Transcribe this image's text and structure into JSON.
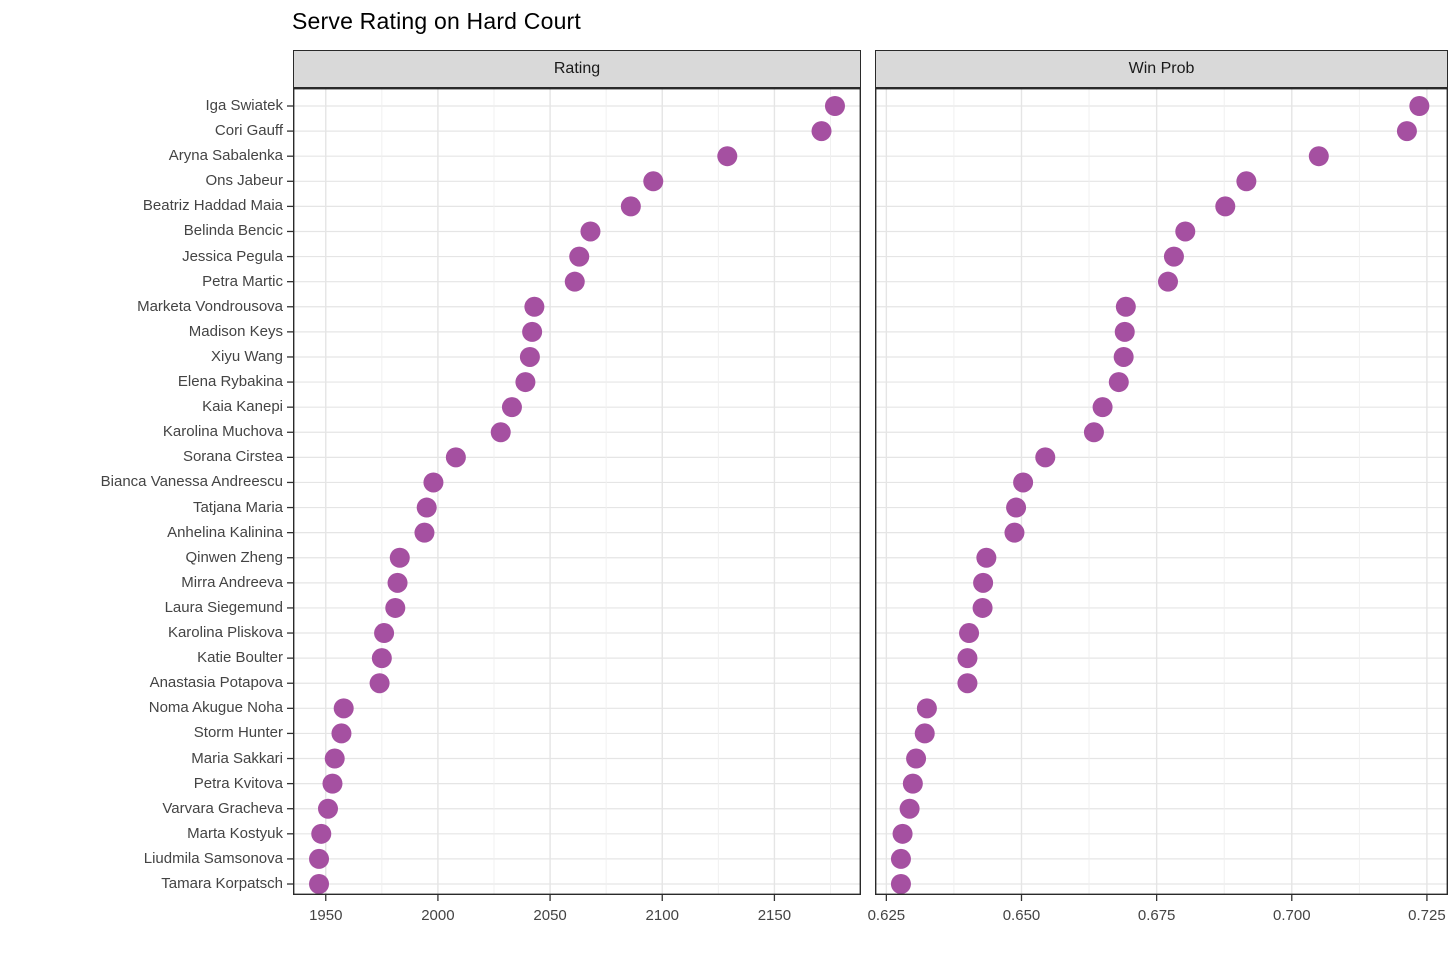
{
  "title": "Serve Rating on Hard Court",
  "chart_data": {
    "type": "scatter",
    "title": "Serve Rating on Hard Court",
    "orientation": "horizontal-dotplot",
    "grid": true,
    "legend": "none",
    "players": [
      "Iga Swiatek",
      "Cori Gauff",
      "Aryna Sabalenka",
      "Ons Jabeur",
      "Beatriz Haddad Maia",
      "Belinda Bencic",
      "Jessica Pegula",
      "Petra Martic",
      "Marketa Vondrousova",
      "Madison Keys",
      "Xiyu Wang",
      "Elena Rybakina",
      "Kaia Kanepi",
      "Karolina Muchova",
      "Sorana Cirstea",
      "Bianca Vanessa Andreescu",
      "Tatjana Maria",
      "Anhelina Kalinina",
      "Qinwen Zheng",
      "Mirra Andreeva",
      "Laura Siegemund",
      "Karolina Pliskova",
      "Katie Boulter",
      "Anastasia Potapova",
      "Noma Akugue Noha",
      "Storm Hunter",
      "Maria Sakkari",
      "Petra Kvitova",
      "Varvara Gracheva",
      "Marta Kostyuk",
      "Liudmila Samsonova",
      "Tamara Korpatsch"
    ],
    "facets": [
      {
        "label": "Rating",
        "xlim": [
          1935.4,
          2188.6
        ],
        "ticks": [
          1950,
          2000,
          2050,
          2100,
          2150
        ],
        "tick_labels": [
          "1950",
          "2000",
          "2050",
          "2100",
          "2150"
        ],
        "minor_ticks": [
          1975,
          2025,
          2075,
          2125,
          2175
        ]
      },
      {
        "label": "Win Prob",
        "xlim": [
          0.6229,
          0.7289
        ],
        "ticks": [
          0.625,
          0.65,
          0.675,
          0.7,
          0.725
        ],
        "tick_labels": [
          "0.625",
          "0.650",
          "0.675",
          "0.700",
          "0.725"
        ],
        "minor_ticks": [
          0.6375,
          0.6625,
          0.6875,
          0.7125
        ]
      }
    ],
    "series": [
      {
        "name": "Rating",
        "values": [
          2177,
          2171,
          2129,
          2096,
          2086,
          2068,
          2063,
          2061,
          2043,
          2042,
          2041,
          2039,
          2033,
          2028,
          2008,
          1998,
          1995,
          1994,
          1983,
          1982,
          1981,
          1976,
          1975,
          1974,
          1958,
          1957,
          1954,
          1953,
          1951,
          1948,
          1947,
          1947
        ]
      },
      {
        "name": "Win Prob",
        "values": [
          0.7236,
          0.7213,
          0.705,
          0.6916,
          0.6877,
          0.6803,
          0.6782,
          0.6771,
          0.6693,
          0.6691,
          0.6689,
          0.668,
          0.665,
          0.6634,
          0.6544,
          0.6503,
          0.649,
          0.6487,
          0.6435,
          0.6429,
          0.6428,
          0.6403,
          0.64,
          0.64,
          0.6325,
          0.6321,
          0.6305,
          0.6299,
          0.6293,
          0.628,
          0.6277,
          0.6277
        ]
      }
    ],
    "colors": {
      "point": "#a550a1",
      "strip_fill": "#d9d9d9",
      "panel_border": "#2a2a2a",
      "grid_major": "#e5e5e5",
      "grid_minor": "#efefef",
      "tick": "#333333",
      "text": "#444444"
    }
  }
}
